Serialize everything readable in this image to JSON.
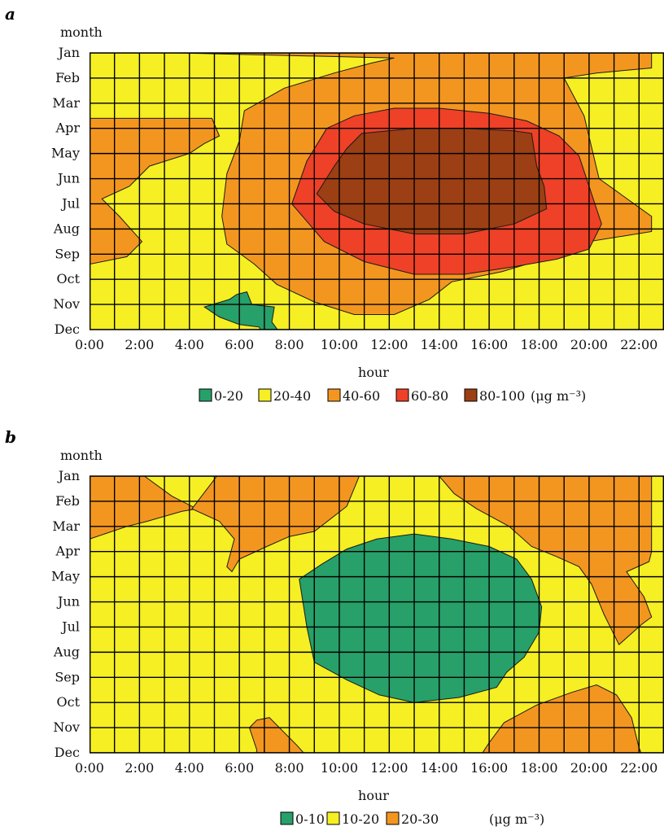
{
  "chart_data": [
    {
      "type": "heatmap",
      "panel": "a",
      "ylabel": "month",
      "xlabel": "hour",
      "y_categories": [
        "Jan",
        "Feb",
        "Mar",
        "Apr",
        "May",
        "Jun",
        "Jul",
        "Aug",
        "Sep",
        "Oct",
        "Nov",
        "Dec"
      ],
      "x_range": [
        0,
        23
      ],
      "x_ticks": [
        "0:00",
        "2:00",
        "4:00",
        "6:00",
        "8:00",
        "10:00",
        "12:00",
        "14:00",
        "16:00",
        "18:00",
        "20:00",
        "22:00"
      ],
      "unit": "(μg m⁻³)",
      "legend": [
        {
          "label": "0-20",
          "color": "#27a06a"
        },
        {
          "label": "20-40",
          "color": "#f5ef23"
        },
        {
          "label": "40-60",
          "color": "#f39620"
        },
        {
          "label": "60-80",
          "color": "#ee4127"
        },
        {
          "label": "80-100",
          "color": "#9c3f14"
        }
      ],
      "background_class": 1,
      "regions": [
        {
          "class": 2,
          "points": [
            [
              3.5,
              0
            ],
            [
              22.5,
              0
            ],
            [
              22.5,
              0.6
            ],
            [
              20.3,
              0.8
            ],
            [
              19.0,
              1.0
            ],
            [
              19.8,
              2.5
            ],
            [
              20.4,
              5.0
            ],
            [
              22.5,
              6.5
            ],
            [
              22.5,
              7.1
            ],
            [
              20.0,
              7.5
            ],
            [
              18.8,
              8.0
            ],
            [
              17.5,
              8.4
            ],
            [
              16.5,
              8.7
            ],
            [
              14.5,
              9.1
            ],
            [
              13.6,
              9.8
            ],
            [
              12.2,
              10.4
            ],
            [
              10.6,
              10.4
            ],
            [
              9.0,
              9.9
            ],
            [
              7.5,
              9.2
            ],
            [
              6.6,
              8.4
            ],
            [
              5.5,
              7.6
            ],
            [
              5.3,
              6.5
            ],
            [
              5.5,
              4.8
            ],
            [
              6.0,
              3.5
            ],
            [
              6.2,
              2.3
            ],
            [
              7.8,
              1.4
            ],
            [
              9.8,
              0.8
            ],
            [
              11.3,
              0.4
            ],
            [
              12.2,
              0.2
            ]
          ]
        },
        {
          "class": 2,
          "points": [
            [
              0,
              2.6
            ],
            [
              4.9,
              2.6
            ],
            [
              5.2,
              3.3
            ],
            [
              4.6,
              3.6
            ],
            [
              4.0,
              4.0
            ],
            [
              2.4,
              4.5
            ],
            [
              1.6,
              5.3
            ],
            [
              0.5,
              5.8
            ],
            [
              1.2,
              6.5
            ],
            [
              2.1,
              7.5
            ],
            [
              1.5,
              8.1
            ],
            [
              0,
              8.4
            ]
          ]
        },
        {
          "class": 3,
          "points": [
            [
              9.5,
              3.0
            ],
            [
              10.6,
              2.5
            ],
            [
              12.2,
              2.2
            ],
            [
              14.0,
              2.2
            ],
            [
              16.0,
              2.4
            ],
            [
              17.5,
              2.7
            ],
            [
              18.8,
              3.3
            ],
            [
              19.6,
              4.1
            ],
            [
              20.5,
              6.8
            ],
            [
              20.0,
              7.8
            ],
            [
              18.7,
              8.2
            ],
            [
              17.0,
              8.5
            ],
            [
              15.0,
              8.8
            ],
            [
              13.0,
              8.8
            ],
            [
              11.0,
              8.3
            ],
            [
              9.4,
              7.5
            ],
            [
              8.1,
              6.0
            ],
            [
              8.7,
              4.3
            ]
          ]
        },
        {
          "class": 4,
          "points": [
            [
              10.9,
              3.2
            ],
            [
              13.0,
              3.0
            ],
            [
              15.0,
              3.0
            ],
            [
              17.0,
              3.1
            ],
            [
              17.7,
              3.2
            ],
            [
              17.9,
              4.5
            ],
            [
              18.2,
              5.3
            ],
            [
              18.3,
              6.2
            ],
            [
              17.0,
              6.8
            ],
            [
              15.0,
              7.2
            ],
            [
              13.0,
              7.2
            ],
            [
              11.0,
              6.8
            ],
            [
              9.8,
              6.3
            ],
            [
              9.1,
              5.6
            ],
            [
              9.8,
              4.5
            ],
            [
              10.3,
              3.8
            ]
          ]
        },
        {
          "class": 0,
          "points": [
            [
              5.6,
              9.8
            ],
            [
              5.9,
              9.6
            ],
            [
              6.3,
              9.5
            ],
            [
              6.5,
              10.0
            ],
            [
              7.4,
              10.1
            ],
            [
              7.3,
              10.7
            ],
            [
              7.6,
              11.1
            ],
            [
              7.1,
              11.8
            ],
            [
              6.8,
              10.9
            ],
            [
              6.0,
              10.8
            ],
            [
              5.2,
              10.5
            ],
            [
              4.6,
              10.1
            ]
          ]
        }
      ]
    },
    {
      "type": "heatmap",
      "panel": "b",
      "ylabel": "month",
      "xlabel": "hour",
      "y_categories": [
        "Jan",
        "Feb",
        "Mar",
        "Apr",
        "May",
        "Jun",
        "Jul",
        "Aug",
        "Sep",
        "Oct",
        "Nov",
        "Dec"
      ],
      "x_range": [
        0,
        23
      ],
      "x_ticks": [
        "0:00",
        "2:00",
        "4:00",
        "6:00",
        "8:00",
        "10:00",
        "12:00",
        "14:00",
        "16:00",
        "18:00",
        "20:00",
        "22:00"
      ],
      "unit": "(μg m⁻³)",
      "legend": [
        {
          "label": "0-10",
          "color": "#27a06a"
        },
        {
          "label": "10-20",
          "color": "#f5ef23"
        },
        {
          "label": "20-30",
          "color": "#f39620"
        }
      ],
      "background_class": 1,
      "regions": [
        {
          "class": 2,
          "points": [
            [
              0,
              0
            ],
            [
              2.2,
              0
            ],
            [
              3.3,
              0.8
            ],
            [
              4.3,
              1.3
            ],
            [
              3.7,
              1.4
            ],
            [
              2.3,
              1.8
            ],
            [
              1.5,
              2.0
            ],
            [
              0,
              2.5
            ]
          ]
        },
        {
          "class": 2,
          "points": [
            [
              5.1,
              0
            ],
            [
              10.8,
              0
            ],
            [
              10.3,
              1.2
            ],
            [
              9.0,
              2.2
            ],
            [
              8.0,
              2.4
            ],
            [
              7.1,
              2.8
            ],
            [
              6.0,
              3.3
            ],
            [
              5.7,
              3.8
            ],
            [
              5.5,
              3.6
            ],
            [
              5.8,
              2.5
            ],
            [
              5.2,
              1.8
            ],
            [
              4.1,
              1.3
            ]
          ]
        },
        {
          "class": 2,
          "points": [
            [
              14.0,
              0
            ],
            [
              22.5,
              0
            ],
            [
              22.5,
              3.0
            ],
            [
              22.4,
              3.4
            ],
            [
              21.5,
              3.8
            ],
            [
              22.2,
              4.8
            ],
            [
              22.5,
              5.6
            ],
            [
              22.1,
              5.9
            ],
            [
              21.2,
              6.7
            ],
            [
              20.6,
              5.5
            ],
            [
              20.1,
              4.3
            ],
            [
              19.6,
              3.6
            ],
            [
              18.7,
              3.2
            ],
            [
              17.7,
              2.8
            ],
            [
              16.8,
              2.0
            ],
            [
              15.5,
              1.3
            ],
            [
              14.6,
              0.7
            ]
          ]
        },
        {
          "class": 0,
          "points": [
            [
              8.4,
              4.1
            ],
            [
              9.3,
              3.5
            ],
            [
              10.3,
              2.9
            ],
            [
              11.5,
              2.5
            ],
            [
              13.0,
              2.3
            ],
            [
              14.5,
              2.5
            ],
            [
              16.0,
              2.8
            ],
            [
              17.1,
              3.3
            ],
            [
              17.7,
              4.1
            ],
            [
              18.1,
              5.2
            ],
            [
              18.0,
              6.2
            ],
            [
              17.4,
              7.2
            ],
            [
              16.7,
              7.8
            ],
            [
              16.3,
              8.4
            ],
            [
              14.8,
              8.8
            ],
            [
              13.0,
              9.0
            ],
            [
              11.6,
              8.7
            ],
            [
              10.3,
              8.1
            ],
            [
              9.0,
              7.4
            ],
            [
              8.7,
              6.0
            ]
          ]
        },
        {
          "class": 2,
          "points": [
            [
              6.4,
              12
            ],
            [
              6.7,
              10.9
            ],
            [
              6.4,
              10.0
            ],
            [
              6.7,
              9.7
            ],
            [
              7.2,
              9.6
            ],
            [
              8.3,
              10.7
            ],
            [
              9.2,
              11.7
            ],
            [
              9.0,
              12
            ]
          ]
        },
        {
          "class": 2,
          "points": [
            [
              14.5,
              12
            ],
            [
              14.7,
              11.5
            ],
            [
              15.4,
              11.5
            ],
            [
              15.6,
              11.2
            ],
            [
              16.0,
              10.6
            ],
            [
              16.6,
              9.8
            ],
            [
              17.9,
              9.1
            ],
            [
              19.3,
              8.6
            ],
            [
              20.3,
              8.3
            ],
            [
              21.1,
              8.7
            ],
            [
              21.7,
              9.6
            ],
            [
              22.0,
              10.8
            ],
            [
              22.5,
              12
            ]
          ]
        }
      ]
    }
  ]
}
